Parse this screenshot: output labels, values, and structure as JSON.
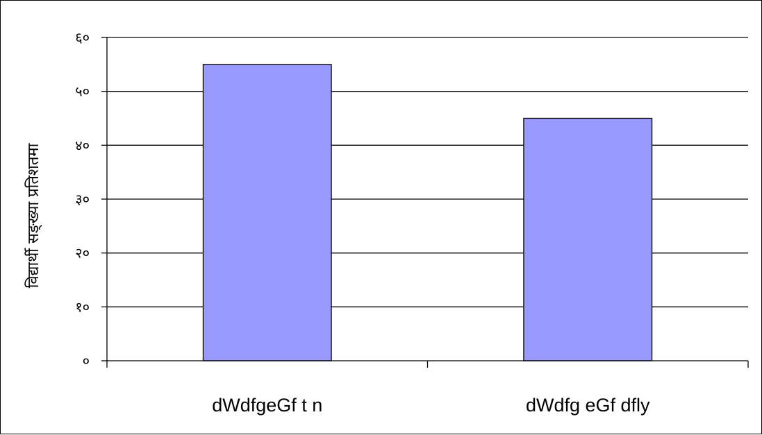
{
  "chart_data": {
    "type": "bar",
    "title": "",
    "xlabel": "",
    "ylabel": "विद्यार्थी सङ्ख्या प्रतिशतमा",
    "categories": [
      "dWdfgeGf t n",
      "dWdfg eGf dfly"
    ],
    "values": [
      55,
      45
    ],
    "ylim": [
      0,
      60
    ],
    "yticks": [
      0,
      10,
      20,
      30,
      40,
      50,
      60
    ],
    "ytick_labels": [
      "०",
      "१०",
      "२०",
      "३०",
      "४०",
      "५०",
      "६०"
    ],
    "grid": true,
    "legend": "none",
    "bar_color": "#9999ff",
    "bar_edge_color": "#000000",
    "gridline_color": "#000000"
  }
}
